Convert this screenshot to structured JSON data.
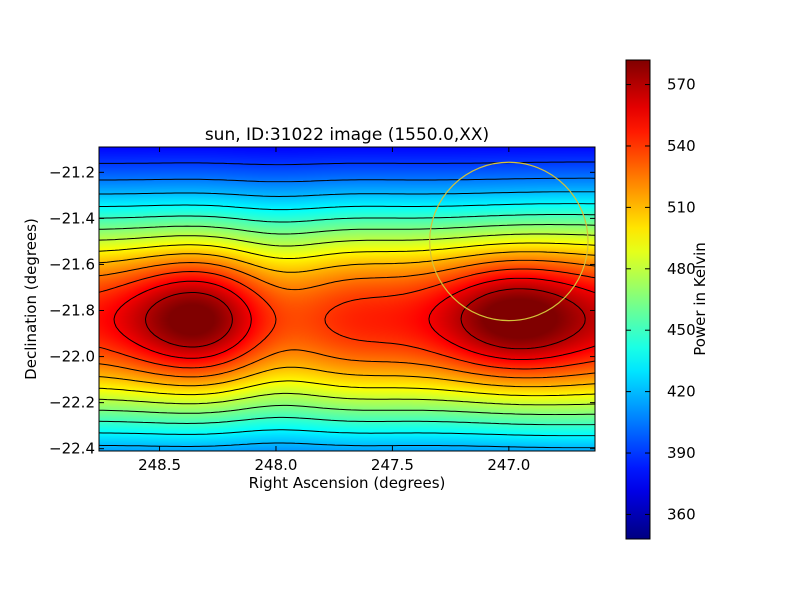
{
  "chart_data": {
    "type": "heatmap",
    "title": "sun, ID:31022 image (1550.0,XX)",
    "xlabel": "Right Ascension (degrees)",
    "ylabel": "Declination (degrees)",
    "colorbar_label": "Power in Kelvin",
    "colormap": "jet",
    "xlim": [
      248.76,
      246.63
    ],
    "ylim": [
      -22.41,
      -21.09
    ],
    "x_inverted": true,
    "x_ticks": [
      248.5,
      248.0,
      247.5,
      247.0
    ],
    "x_tick_labels": [
      "248.5",
      "248.0",
      "247.5",
      "247.0"
    ],
    "y_ticks": [
      -21.2,
      -21.4,
      -21.6,
      -21.8,
      -22.0,
      -22.2,
      -22.4
    ],
    "y_tick_labels": [
      "−21.2",
      "−21.4",
      "−21.6",
      "−21.8",
      "−22.0",
      "−22.2",
      "−22.4"
    ],
    "colorbar_range": [
      348,
      582
    ],
    "colorbar_ticks": [
      360,
      390,
      420,
      450,
      480,
      510,
      540,
      570
    ],
    "colorbar_tick_labels": [
      "360",
      "390",
      "420",
      "450",
      "480",
      "510",
      "540",
      "570"
    ],
    "field": {
      "base": 350,
      "band_amplitude": 200,
      "band_center_dec": -21.84,
      "band_sigma_dec": 0.38,
      "peaks": [
        {
          "ra": 248.34,
          "dec": -21.84,
          "amplitude": 40
        },
        {
          "ra": 246.99,
          "dec": -21.83,
          "amplitude": 40
        }
      ]
    },
    "contour_levels": [
      360,
      375,
      390,
      405,
      420,
      435,
      450,
      465,
      480,
      495,
      510,
      525,
      540,
      555,
      570
    ],
    "marker_circle": {
      "ra": 247.0,
      "dec": -21.5,
      "radius_deg": 0.34,
      "color": "#d4c23a"
    },
    "grid": false
  }
}
